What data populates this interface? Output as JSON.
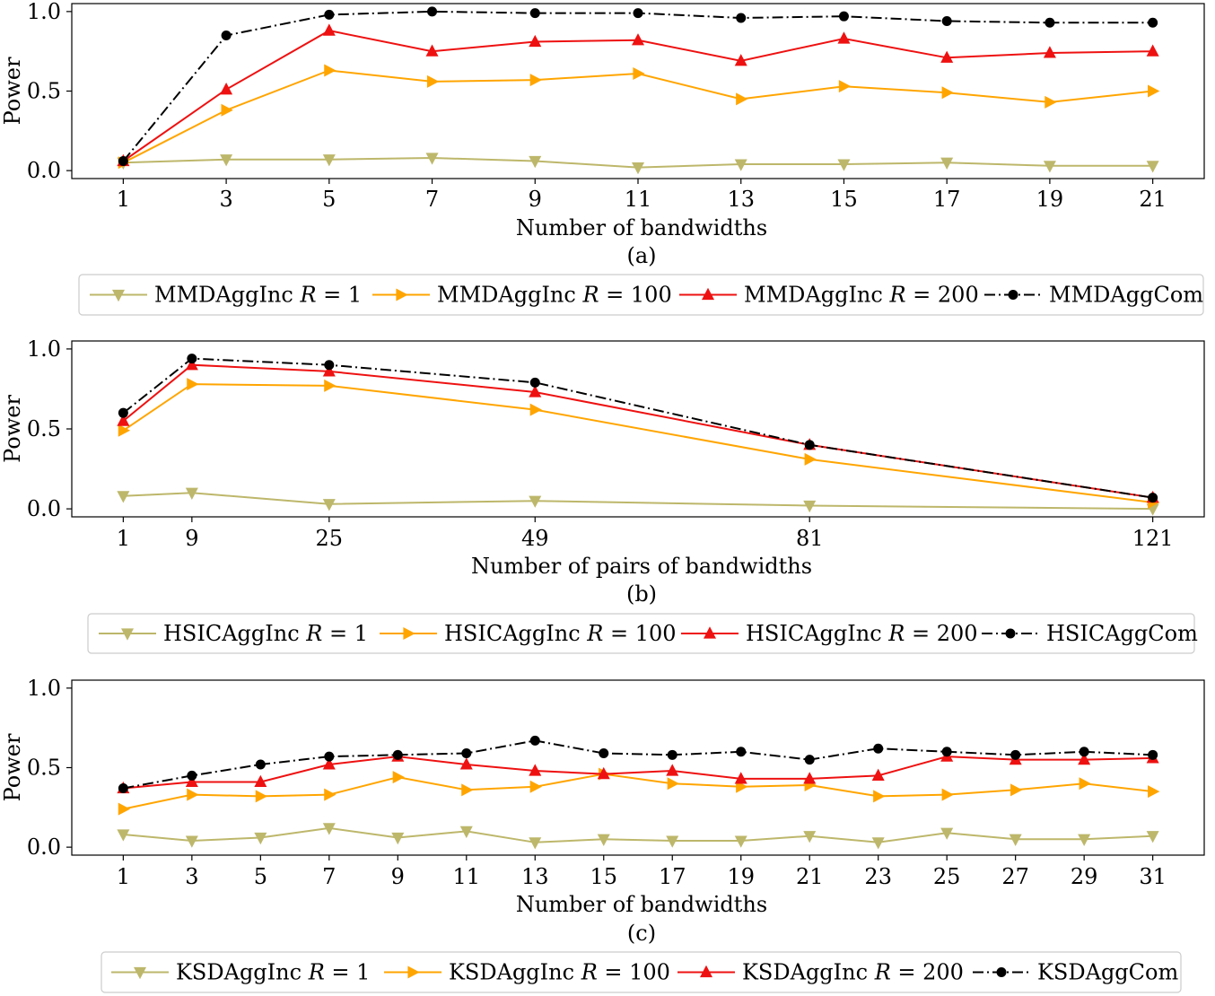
{
  "colors": {
    "r1": "#BDB76B",
    "r100": "#FFA500",
    "r200": "#EE1111",
    "com": "#000000"
  },
  "chart_data": [
    {
      "type": "line",
      "caption": "(a)",
      "xlabel": "Number of bandwidths",
      "ylabel": "Power",
      "ylim": [
        -0.05,
        1.05
      ],
      "yticks": [
        0.0,
        0.5,
        1.0
      ],
      "ytick_labels": [
        "0.0",
        "0.5",
        "1.0"
      ],
      "xlim": [
        0.0,
        22.0
      ],
      "x": [
        1,
        3,
        5,
        7,
        9,
        11,
        13,
        15,
        17,
        19,
        21
      ],
      "xtick_labels": [
        "1",
        "3",
        "5",
        "7",
        "9",
        "11",
        "13",
        "15",
        "17",
        "19",
        "21"
      ],
      "legend_position": "below",
      "series": [
        {
          "name": "MMDAggInc R = 1",
          "label_text": "MMDAggInc",
          "r_value": "1",
          "values": [
            0.05,
            0.07,
            0.07,
            0.08,
            0.06,
            0.02,
            0.04,
            0.04,
            0.05,
            0.03,
            0.03
          ]
        },
        {
          "name": "MMDAggInc R = 100",
          "label_text": "MMDAggInc",
          "r_value": "100",
          "values": [
            0.05,
            0.38,
            0.63,
            0.56,
            0.57,
            0.61,
            0.45,
            0.53,
            0.49,
            0.43,
            0.5
          ]
        },
        {
          "name": "MMDAggInc R = 200",
          "label_text": "MMDAggInc",
          "r_value": "200",
          "values": [
            0.06,
            0.51,
            0.88,
            0.75,
            0.81,
            0.82,
            0.69,
            0.83,
            0.71,
            0.74,
            0.75
          ]
        },
        {
          "name": "MMDAggCom",
          "label_text": "MMDAggCom",
          "r_value": "",
          "values": [
            0.06,
            0.85,
            0.98,
            1.0,
            0.99,
            0.99,
            0.96,
            0.97,
            0.94,
            0.93,
            0.93
          ]
        }
      ]
    },
    {
      "type": "line",
      "caption": "(b)",
      "xlabel": "Number of pairs of bandwidths",
      "ylabel": "Power",
      "ylim": [
        -0.05,
        1.05
      ],
      "yticks": [
        0.0,
        0.5,
        1.0
      ],
      "ytick_labels": [
        "0.0",
        "0.5",
        "1.0"
      ],
      "xlim": [
        -5.0,
        127.0
      ],
      "x": [
        1,
        9,
        25,
        49,
        81,
        121
      ],
      "xtick_labels": [
        "1",
        "9",
        "25",
        "49",
        "81",
        "121"
      ],
      "legend_position": "below",
      "series": [
        {
          "name": "HSICAggInc R = 1",
          "label_text": "HSICAggInc",
          "r_value": "1",
          "values": [
            0.08,
            0.1,
            0.03,
            0.05,
            0.02,
            0.0
          ]
        },
        {
          "name": "HSICAggInc R = 100",
          "label_text": "HSICAggInc",
          "r_value": "100",
          "values": [
            0.49,
            0.78,
            0.77,
            0.62,
            0.31,
            0.04
          ]
        },
        {
          "name": "HSICAggInc R = 200",
          "label_text": "HSICAggInc",
          "r_value": "200",
          "values": [
            0.55,
            0.9,
            0.86,
            0.73,
            0.4,
            0.07
          ]
        },
        {
          "name": "HSICAggCom",
          "label_text": "HSICAggCom",
          "r_value": "",
          "values": [
            0.6,
            0.94,
            0.9,
            0.79,
            0.4,
            0.07
          ]
        }
      ]
    },
    {
      "type": "line",
      "caption": "(c)",
      "xlabel": "Number of bandwidths",
      "ylabel": "Power",
      "ylim": [
        -0.05,
        1.05
      ],
      "yticks": [
        0.0,
        0.5,
        1.0
      ],
      "ytick_labels": [
        "0.0",
        "0.5",
        "1.0"
      ],
      "xlim": [
        -0.5,
        32.5
      ],
      "x": [
        1,
        3,
        5,
        7,
        9,
        11,
        13,
        15,
        17,
        19,
        21,
        23,
        25,
        27,
        29,
        31
      ],
      "xtick_labels": [
        "1",
        "3",
        "5",
        "7",
        "9",
        "11",
        "13",
        "15",
        "17",
        "19",
        "21",
        "23",
        "25",
        "27",
        "29",
        "31"
      ],
      "legend_position": "below",
      "series": [
        {
          "name": "KSDAggInc R = 1",
          "label_text": "KSDAggInc",
          "r_value": "1",
          "values": [
            0.08,
            0.04,
            0.06,
            0.12,
            0.06,
            0.1,
            0.03,
            0.05,
            0.04,
            0.04,
            0.07,
            0.03,
            0.09,
            0.05,
            0.05,
            0.07
          ]
        },
        {
          "name": "KSDAggInc R = 100",
          "label_text": "KSDAggInc",
          "r_value": "100",
          "values": [
            0.24,
            0.33,
            0.32,
            0.33,
            0.44,
            0.36,
            0.38,
            0.46,
            0.4,
            0.38,
            0.39,
            0.32,
            0.33,
            0.36,
            0.4,
            0.35
          ]
        },
        {
          "name": "KSDAggInc R = 200",
          "label_text": "KSDAggInc",
          "r_value": "200",
          "values": [
            0.37,
            0.41,
            0.41,
            0.52,
            0.57,
            0.52,
            0.48,
            0.46,
            0.48,
            0.43,
            0.43,
            0.45,
            0.57,
            0.55,
            0.55,
            0.56
          ]
        },
        {
          "name": "KSDAggCom",
          "label_text": "KSDAggCom",
          "r_value": "",
          "values": [
            0.37,
            0.45,
            0.52,
            0.57,
            0.58,
            0.59,
            0.67,
            0.59,
            0.58,
            0.6,
            0.55,
            0.62,
            0.6,
            0.58,
            0.6,
            0.58
          ]
        }
      ]
    }
  ]
}
